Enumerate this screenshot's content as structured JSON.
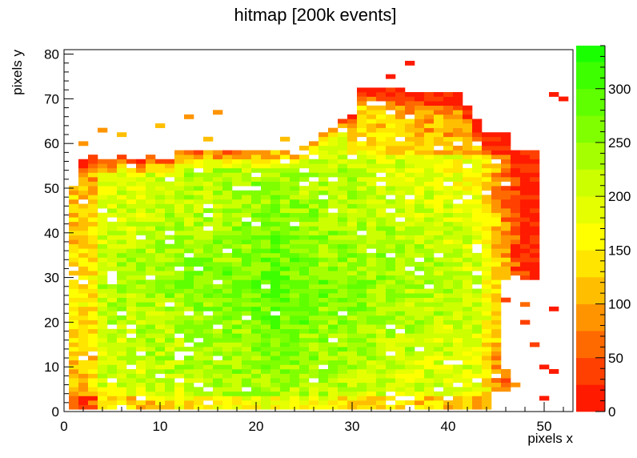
{
  "chart_data": {
    "type": "heatmap",
    "title": "hitmap [200k events]",
    "xlabel": "pixels x",
    "ylabel": "pixels y",
    "xlim": [
      0,
      53
    ],
    "ylim": [
      0,
      81
    ],
    "x_ticks": [
      0,
      10,
      20,
      30,
      40,
      50
    ],
    "y_ticks": [
      0,
      10,
      20,
      30,
      40,
      50,
      60,
      70,
      80
    ],
    "z_range": [
      0,
      340
    ],
    "z_ticks": [
      0,
      50,
      100,
      150,
      200,
      250,
      300
    ],
    "z_bins": [
      0,
      25,
      50,
      75,
      100,
      125,
      150,
      175,
      200,
      225,
      250,
      275,
      300,
      325,
      340
    ],
    "z_colors": [
      "#ff1a00",
      "#ff4000",
      "#ff6a00",
      "#ff9400",
      "#ffbf00",
      "#ffe500",
      "#ffff00",
      "#e6ff00",
      "#ccff00",
      "#a6ff00",
      "#80ff00",
      "#5fff00",
      "#3dff00",
      "#1aff00"
    ],
    "cells_description_note": "",
    "approx_profile": {
      "x_bins": [
        1,
        49
      ],
      "y_bins": [
        1,
        78
      ]
    }
  }
}
